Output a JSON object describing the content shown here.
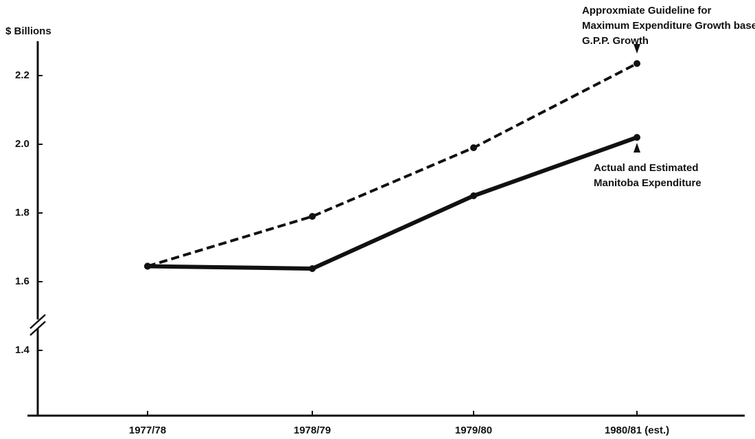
{
  "chart_data": {
    "type": "line",
    "y_axis_label": "$ Billions",
    "categories": [
      "1977/78",
      "1978/79",
      "1979/80",
      "1980/81 (est.)"
    ],
    "series": [
      {
        "color": "#111111",
        "dashed": true,
        "values": [
          1.645,
          1.79,
          1.99,
          2.235
        ]
      },
      {
        "color": "#111111",
        "dashed": false,
        "values": [
          1.645,
          1.638,
          1.85,
          2.02
        ]
      }
    ],
    "ylim": [
      1.21,
      2.3
    ],
    "yticks": [
      {
        "value": 1.4,
        "label": "1.4"
      },
      {
        "value": 1.6,
        "label": "1.6"
      },
      {
        "value": 1.8,
        "label": "1.8"
      },
      {
        "value": 2.0,
        "label": "2.0"
      },
      {
        "value": 2.2,
        "label": "2.2"
      }
    ],
    "annotations": [
      {
        "lines": [
          "Approxmiate Guideline for",
          "Maximum Expenditure Growth based on",
          "G.P.P. Growth"
        ]
      },
      {
        "lines": [
          "Actual and Estimated",
          "Manitoba Expenditure"
        ]
      }
    ]
  }
}
